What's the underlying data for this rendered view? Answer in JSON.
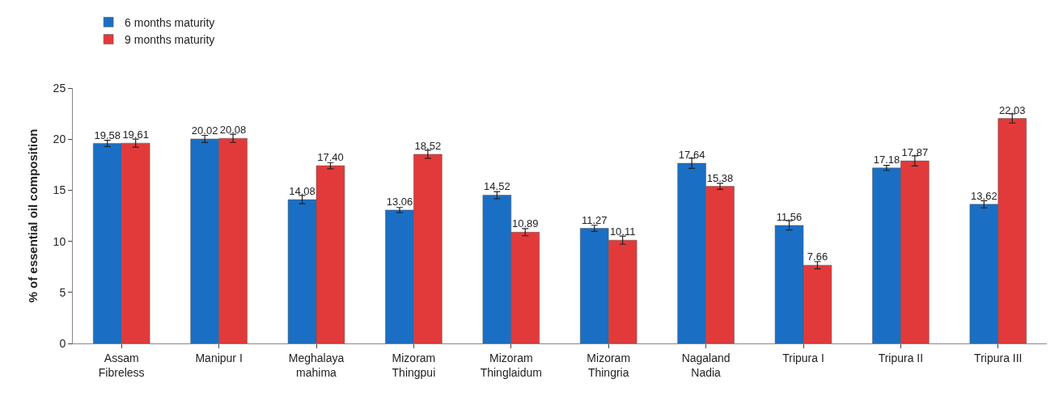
{
  "chart_data": {
    "type": "bar",
    "ylabel": "% of essential oil composition",
    "categories": [
      "Assam\nFibreless",
      "Manipur I",
      "Meghalaya\nmahima",
      "Mizoram\nThingpui",
      "Mizoram\nThinglaidum",
      "Mizoram\nThingria",
      "Nagaland\nNadia",
      "Tripura I",
      "Tripura II",
      "Tripura III"
    ],
    "series": [
      {
        "name": "6 months maturity",
        "color": "#1a6fc4",
        "values": [
          19.58,
          20.02,
          14.08,
          13.06,
          14.52,
          11.27,
          17.64,
          11.56,
          17.18,
          13.62
        ],
        "errors": [
          0.3,
          0.35,
          0.4,
          0.25,
          0.35,
          0.3,
          0.5,
          0.45,
          0.25,
          0.35
        ],
        "value_labels": [
          "19.58",
          "20.02",
          "14.08",
          "13.06",
          "14.52",
          "11.27",
          "17.64",
          "11.56",
          "17.18",
          "13.62"
        ]
      },
      {
        "name": "9 months maturity",
        "color": "#e23a3a",
        "values": [
          19.61,
          20.08,
          17.4,
          18.52,
          10.89,
          10.11,
          15.38,
          7.66,
          17.87,
          22.03
        ],
        "errors": [
          0.4,
          0.4,
          0.3,
          0.4,
          0.35,
          0.4,
          0.3,
          0.35,
          0.5,
          0.45
        ],
        "value_labels": [
          "19.61",
          "20.08",
          "17.40",
          "18.52",
          "10.89",
          "10.11",
          "15.38",
          "7.66",
          "17.87",
          "22.03"
        ]
      }
    ],
    "ylim": [
      0,
      25
    ],
    "yticks": [
      0,
      5,
      10,
      15,
      20,
      25
    ],
    "legend": "top left"
  }
}
